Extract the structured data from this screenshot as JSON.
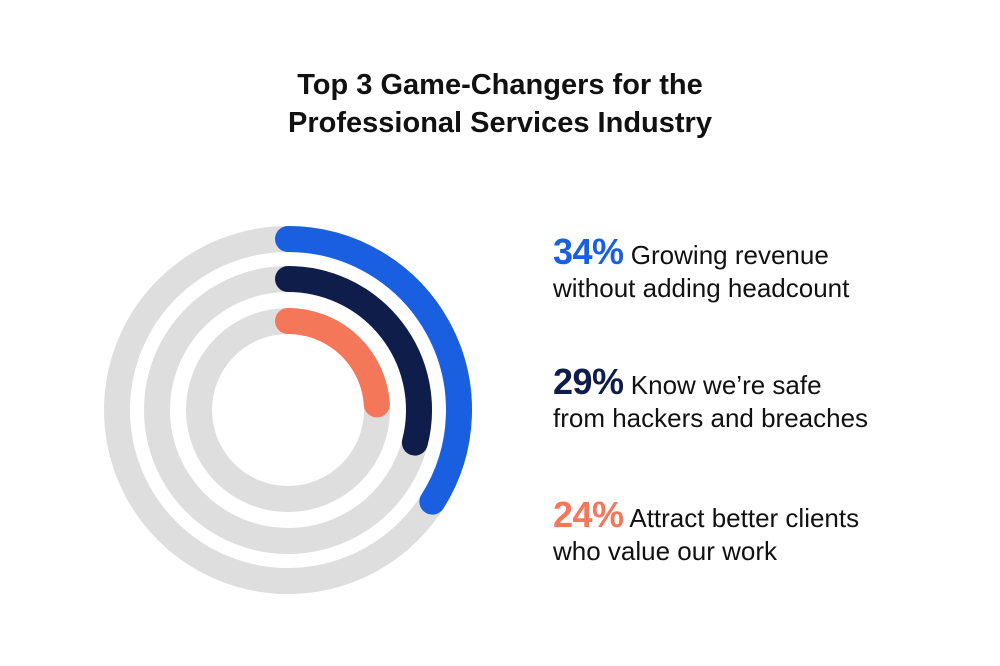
{
  "title": {
    "line1": "Top 3 Game-Changers for the",
    "line2": "Professional Services Industry"
  },
  "chart_data": {
    "type": "radial-bar",
    "max": 100,
    "track_color": "#dedede",
    "series": [
      {
        "value": 34,
        "value_label": "34%",
        "label_line1": "Growing revenue",
        "label_line2": "without adding headcount",
        "color": "#1a5fe0"
      },
      {
        "value": 29,
        "value_label": "29%",
        "label_line1": "Know we’re safe",
        "label_line2": "from hackers and breaches",
        "color": "#0e1d4a"
      },
      {
        "value": 24,
        "value_label": "24%",
        "label_line1": "Attract better clients",
        "label_line2": "who value our work",
        "color": "#f4775a"
      }
    ]
  }
}
